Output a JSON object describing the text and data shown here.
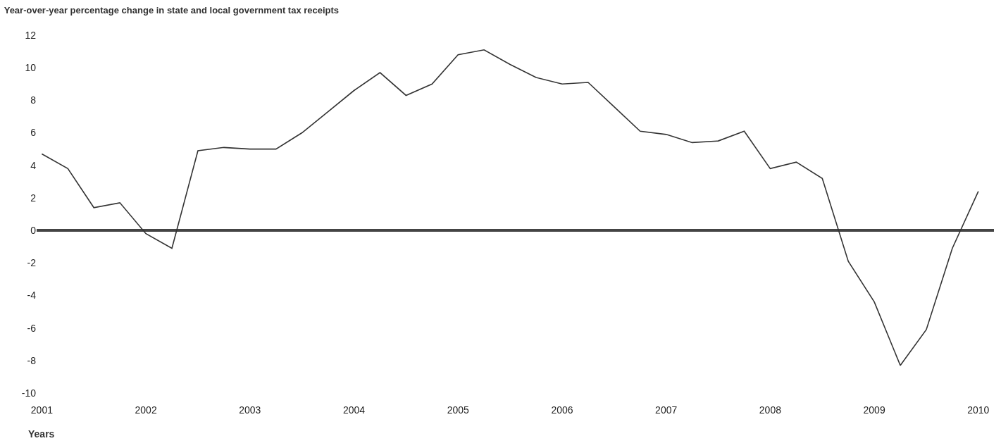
{
  "chart_data": {
    "type": "line",
    "title": "Year-over-year percentage change in state and local government tax receipts",
    "xlabel": "Years",
    "x": [
      2001,
      2001.25,
      2001.5,
      2001.75,
      2002,
      2002.25,
      2002.5,
      2002.75,
      2003,
      2003.25,
      2003.5,
      2003.75,
      2004,
      2004.25,
      2004.5,
      2004.75,
      2005,
      2005.25,
      2005.5,
      2005.75,
      2006,
      2006.25,
      2006.5,
      2006.75,
      2007,
      2007.25,
      2007.5,
      2007.75,
      2008,
      2008.25,
      2008.5,
      2008.75,
      2009,
      2009.25,
      2009.5,
      2009.75,
      2010
    ],
    "series": [
      {
        "color": "#333333",
        "values": [
          4.7,
          3.8,
          1.4,
          1.7,
          -0.2,
          -1.1,
          4.9,
          5.1,
          5.0,
          5.0,
          6.0,
          7.3,
          8.6,
          9.7,
          8.3,
          9.0,
          10.8,
          11.1,
          10.2,
          9.4,
          9.0,
          9.1,
          7.6,
          6.1,
          5.9,
          5.4,
          5.5,
          6.1,
          3.8,
          4.2,
          3.2,
          -1.9,
          -4.4,
          -8.3,
          -6.1,
          -1.1,
          2.4
        ]
      }
    ],
    "xlim": [
      2000.95,
      2010.15
    ],
    "xticks": [
      2001,
      2002,
      2003,
      2004,
      2005,
      2006,
      2007,
      2008,
      2009,
      2010
    ],
    "ylim": [
      -10,
      12
    ],
    "yticks": [
      -10,
      -8,
      -6,
      -4,
      -2,
      0,
      2,
      4,
      6,
      8,
      10,
      12
    ],
    "ref_lines": [
      {
        "axis": "y",
        "value": 0,
        "color": "#444444"
      }
    ],
    "grid": false
  }
}
